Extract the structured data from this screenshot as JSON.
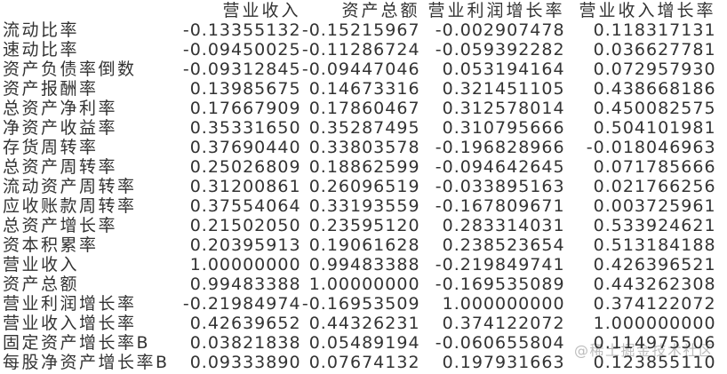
{
  "page": {
    "background": "#ffffff",
    "text_color": "#333333"
  },
  "watermark": {
    "text": "@稀土掘金技术社区",
    "color": "#bdbdbd"
  },
  "chart_data": {
    "type": "table",
    "columns": [
      "营业收入",
      "资产总额",
      "营业利润增长率",
      "营业收入增长率"
    ],
    "rows": [
      {
        "label": "流动比率",
        "values": [
          "-0.13355132",
          "-0.15215967",
          "-0.002907478",
          "0.118317131"
        ]
      },
      {
        "label": "速动比率",
        "values": [
          "-0.09450025",
          "-0.11286724",
          "-0.059392282",
          "0.036627781"
        ]
      },
      {
        "label": "资产负债率倒数",
        "values": [
          "-0.09312845",
          "-0.09447046",
          "0.053194164",
          "0.072957930"
        ]
      },
      {
        "label": "资产报酬率",
        "values": [
          "0.13985675",
          "0.14673316",
          "0.321451105",
          "0.438668186"
        ]
      },
      {
        "label": "总资产净利率",
        "values": [
          "0.17667909",
          "0.17860467",
          "0.312578014",
          "0.450082575"
        ]
      },
      {
        "label": "净资产收益率",
        "values": [
          "0.35331650",
          "0.35287495",
          "0.310795666",
          "0.504101981"
        ]
      },
      {
        "label": "存货周转率",
        "values": [
          "0.37690440",
          "0.33803578",
          "-0.196828966",
          "-0.018046963"
        ]
      },
      {
        "label": "总资产周转率",
        "values": [
          "0.25026809",
          "0.18862599",
          "-0.094642645",
          "0.071785666"
        ]
      },
      {
        "label": "流动资产周转率",
        "values": [
          "0.31200861",
          "0.26096519",
          "-0.033895163",
          "0.021766256"
        ]
      },
      {
        "label": "应收账款周转率",
        "values": [
          "0.37554064",
          "0.33193559",
          "-0.167809671",
          "0.003725961"
        ]
      },
      {
        "label": "总资产增长率",
        "values": [
          "0.21502050",
          "0.23595120",
          "0.283314031",
          "0.533924621"
        ]
      },
      {
        "label": "资本积累率",
        "values": [
          "0.20395913",
          "0.19061628",
          "0.238523654",
          "0.513184188"
        ]
      },
      {
        "label": "营业收入",
        "values": [
          "1.00000000",
          "0.99483388",
          "-0.219849741",
          "0.426396521"
        ]
      },
      {
        "label": "资产总额",
        "values": [
          "0.99483388",
          "1.00000000",
          "-0.169535089",
          "0.443262308"
        ]
      },
      {
        "label": "营业利润增长率",
        "values": [
          "-0.21984974",
          "-0.16953509",
          "1.000000000",
          "0.374122072"
        ]
      },
      {
        "label": "营业收入增长率",
        "values": [
          "0.42639652",
          "0.44326231",
          "0.374122072",
          "1.000000000"
        ]
      },
      {
        "label": "固定资产增长率B",
        "values": [
          "0.03821838",
          "0.05489194",
          "-0.060655804",
          "0.114975506"
        ]
      },
      {
        "label": "每股净资产增长率B",
        "values": [
          "0.09333890",
          "0.07674132",
          "0.197931663",
          "0.123855110"
        ]
      }
    ]
  }
}
